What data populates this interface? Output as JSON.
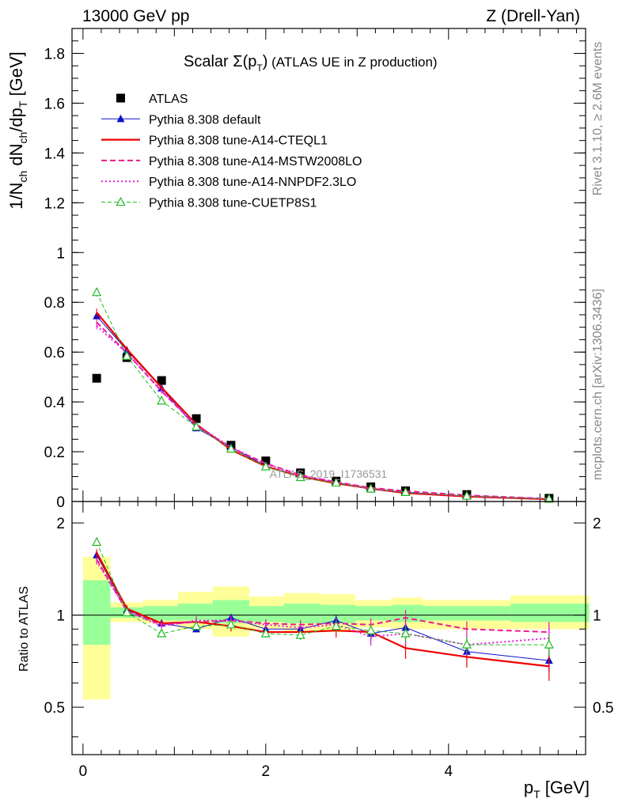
{
  "header": {
    "left": "13000 GeV pp",
    "right": "Z (Drell-Yan)"
  },
  "side_text": {
    "rivet": "Rivet 3.1.10, ≥ 2.6M events",
    "mcplots": "mcplots.cern.ch [arXiv:1306.3436]"
  },
  "watermark": "ATLAS_2019_I1736531",
  "chart_data": {
    "type": "line",
    "title": "Scalar Σ(p_T) (ATLAS UE in Z production)",
    "xlabel": "p_T [GeV]",
    "ylabel": "1/N_ch dN_ch/dp_T [GeV]",
    "ratio_ylabel": "Ratio to ATLAS",
    "xlim": [
      -0.12,
      5.5
    ],
    "ylim": [
      0,
      1.9
    ],
    "ratio_ylim": [
      0.35,
      2.35
    ],
    "x_ticks": [
      "0",
      "2",
      "4"
    ],
    "y_ticks": [
      "0",
      "0.2",
      "0.4",
      "0.6",
      "0.8",
      "1",
      "1.2",
      "1.4",
      "1.6",
      "1.8"
    ],
    "ratio_ticks": [
      "0.5",
      "1",
      "2"
    ],
    "x": [
      0.15,
      0.48,
      0.86,
      1.24,
      1.62,
      2.0,
      2.38,
      2.77,
      3.15,
      3.53,
      4.2,
      5.1
    ],
    "band_edges": [
      0.0,
      0.3,
      0.66,
      1.04,
      1.42,
      1.82,
      2.2,
      2.6,
      2.98,
      3.38,
      3.72,
      4.68,
      5.54
    ],
    "band_green": [
      [
        0.8,
        1.3
      ],
      [
        0.98,
        1.06
      ],
      [
        0.96,
        1.07
      ],
      [
        0.96,
        1.09
      ],
      [
        0.94,
        1.12
      ],
      [
        0.95,
        1.07
      ],
      [
        0.94,
        1.09
      ],
      [
        0.94,
        1.08
      ],
      [
        0.96,
        1.07
      ],
      [
        0.95,
        1.08
      ],
      [
        0.96,
        1.07
      ],
      [
        0.95,
        1.09
      ]
    ],
    "band_yellow": [
      [
        0.53,
        1.55
      ],
      [
        0.95,
        1.1
      ],
      [
        0.94,
        1.12
      ],
      [
        0.9,
        1.19
      ],
      [
        0.85,
        1.24
      ],
      [
        0.9,
        1.15
      ],
      [
        0.88,
        1.18
      ],
      [
        0.88,
        1.17
      ],
      [
        0.91,
        1.12
      ],
      [
        0.9,
        1.14
      ],
      [
        0.9,
        1.12
      ],
      [
        0.9,
        1.16
      ]
    ],
    "series": [
      {
        "name": "ATLAS",
        "color": "#000000",
        "marker": "square",
        "line": "none",
        "values": [
          0.495,
          0.578,
          0.486,
          0.333,
          0.226,
          0.163,
          0.115,
          0.082,
          0.059,
          0.043,
          0.028,
          0.013
        ],
        "ratio": [
          1,
          1,
          1,
          1,
          1,
          1,
          1,
          1,
          1,
          1,
          1,
          1
        ]
      },
      {
        "name": "Pythia 8.308 default",
        "color": "#1010cc",
        "marker": "triangle",
        "line": "solid",
        "width": 1,
        "values": [
          0.745,
          0.607,
          0.455,
          0.295,
          0.218,
          0.143,
          0.099,
          0.077,
          0.049,
          0.038,
          0.021,
          0.009
        ],
        "ratio": [
          1.57,
          1.04,
          0.94,
          0.9,
          0.98,
          0.9,
          0.9,
          0.96,
          0.87,
          0.91,
          0.76,
          0.71
        ]
      },
      {
        "name": "Pythia 8.308 tune-A14-CTEQL1",
        "color": "#ee0000",
        "marker": "none",
        "line": "solid",
        "width": 2.2,
        "values": [
          0.76,
          0.612,
          0.458,
          0.31,
          0.208,
          0.141,
          0.1,
          0.073,
          0.052,
          0.034,
          0.02,
          0.009
        ],
        "ratio": [
          1.6,
          1.05,
          0.94,
          0.95,
          0.92,
          0.88,
          0.88,
          0.89,
          0.88,
          0.78,
          0.73,
          0.68
        ]
      },
      {
        "name": "Pythia 8.308 tune-A14-MSTW2008LO",
        "color": "#ee1a8c",
        "marker": "none",
        "line": "dashed",
        "width": 2,
        "values": [
          0.72,
          0.597,
          0.443,
          0.304,
          0.216,
          0.153,
          0.106,
          0.078,
          0.055,
          0.042,
          0.025,
          0.011
        ],
        "ratio": [
          1.52,
          1.03,
          0.93,
          0.95,
          0.96,
          0.94,
          0.93,
          0.94,
          0.93,
          0.98,
          0.9,
          0.88
        ]
      },
      {
        "name": "Pythia 8.308 tune-A14-NNPDF2.3LO",
        "color": "#e020e0",
        "marker": "none",
        "line": "dotted",
        "width": 2,
        "values": [
          0.705,
          0.596,
          0.443,
          0.308,
          0.218,
          0.151,
          0.104,
          0.077,
          0.05,
          0.037,
          0.022,
          0.011
        ],
        "ratio": [
          1.5,
          1.03,
          0.92,
          0.96,
          0.96,
          0.93,
          0.91,
          0.93,
          0.85,
          0.87,
          0.8,
          0.84
        ]
      },
      {
        "name": "Pythia 8.308 tune-CUETP8S1",
        "color": "#22bb22",
        "marker": "triangle-open",
        "line": "dashed",
        "width": 1,
        "values": [
          0.84,
          0.584,
          0.404,
          0.3,
          0.211,
          0.14,
          0.097,
          0.075,
          0.051,
          0.037,
          0.022,
          0.01
        ],
        "ratio": [
          1.73,
          1.02,
          0.87,
          0.92,
          0.93,
          0.87,
          0.86,
          0.92,
          0.89,
          0.87,
          0.8,
          0.8
        ]
      }
    ]
  }
}
